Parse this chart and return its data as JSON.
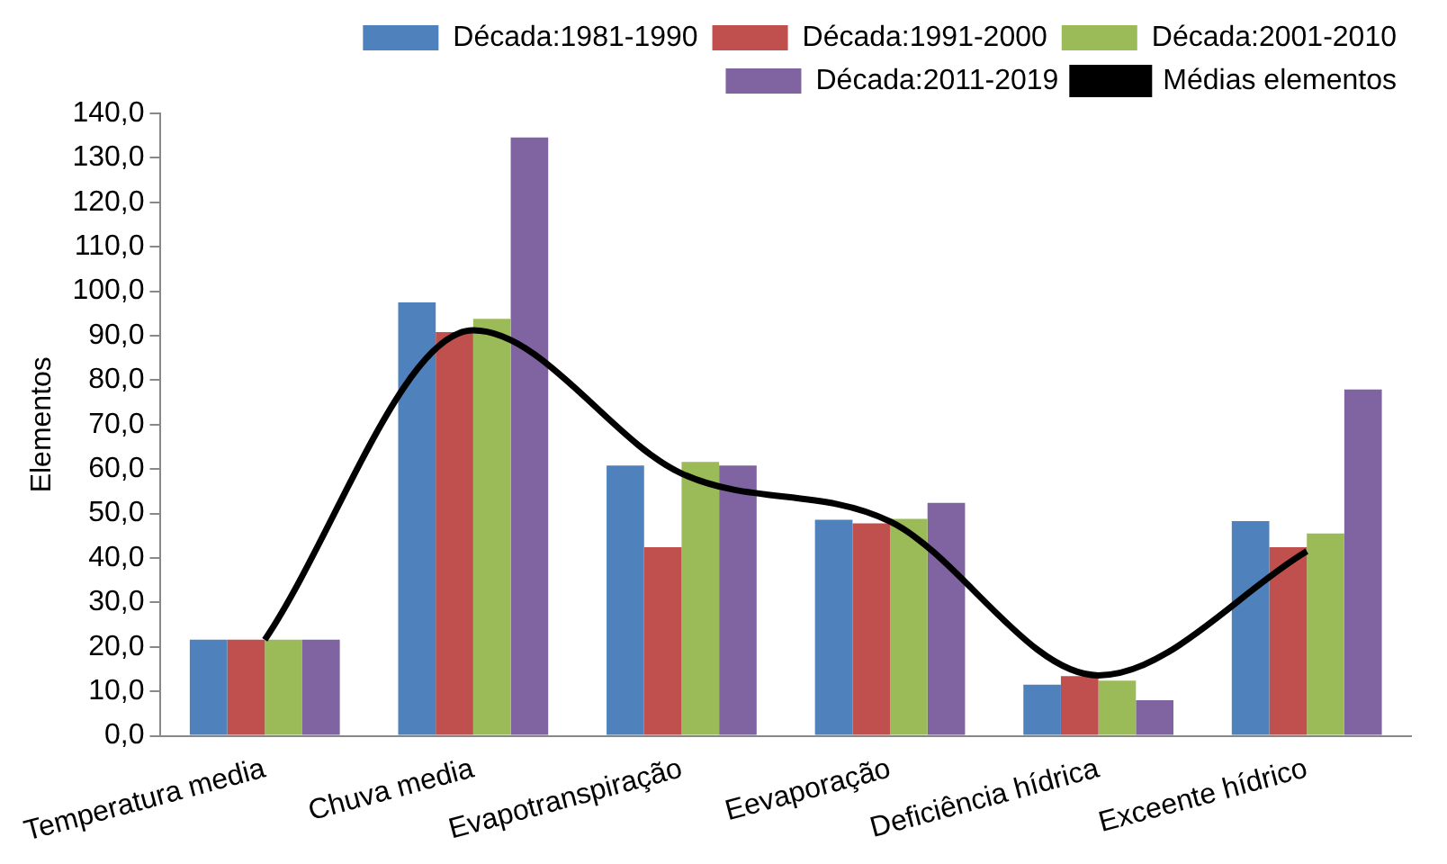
{
  "chart_data": {
    "type": "bar",
    "ylabel": "Elementos",
    "categories": [
      "Temperatura media",
      "Chuva media",
      "Evapotranspiração",
      "Eevaporação",
      "Deficiência hídrica",
      "Exceente hídrico"
    ],
    "series": [
      {
        "name": "Década:1981-1990",
        "color": "#4f81bd",
        "values": [
          21.6,
          97.5,
          60.8,
          48.6,
          11.5,
          48.3
        ]
      },
      {
        "name": "Década:1991-2000",
        "color": "#c0504d",
        "values": [
          21.6,
          90.8,
          42.4,
          47.8,
          13.4,
          42.4
        ]
      },
      {
        "name": "Década:2001-2010",
        "color": "#9bbb59",
        "values": [
          21.6,
          93.8,
          61.6,
          48.8,
          12.4,
          45.5
        ]
      },
      {
        "name": "Década:2011-2019",
        "color": "#8064a2",
        "values": [
          21.6,
          134.6,
          60.8,
          52.4,
          8.0,
          77.9
        ]
      },
      {
        "name": "Médias elementos",
        "type": "line",
        "color": "#000000",
        "marker": "none",
        "values": [
          21.6,
          91.2,
          59.0,
          48.2,
          13.6,
          41.5
        ]
      }
    ],
    "ylim": [
      0,
      140
    ],
    "yticks": [
      {
        "value": 0,
        "label": "0,0"
      },
      {
        "value": 10,
        "label": "10,0"
      },
      {
        "value": 20,
        "label": "20,0"
      },
      {
        "value": 30,
        "label": "30,0"
      },
      {
        "value": 40,
        "label": "40,0"
      },
      {
        "value": 50,
        "label": "50,0"
      },
      {
        "value": 60,
        "label": "60,0"
      },
      {
        "value": 70,
        "label": "70,0"
      },
      {
        "value": 80,
        "label": "80,0"
      },
      {
        "value": 90,
        "label": "90,0"
      },
      {
        "value": 100,
        "label": "100,0"
      },
      {
        "value": 110,
        "label": "110,0"
      },
      {
        "value": 120,
        "label": "120,0"
      },
      {
        "value": 130,
        "label": "130,0"
      },
      {
        "value": 140,
        "label": "140,0"
      }
    ],
    "grid": false,
    "legend": "top right"
  }
}
